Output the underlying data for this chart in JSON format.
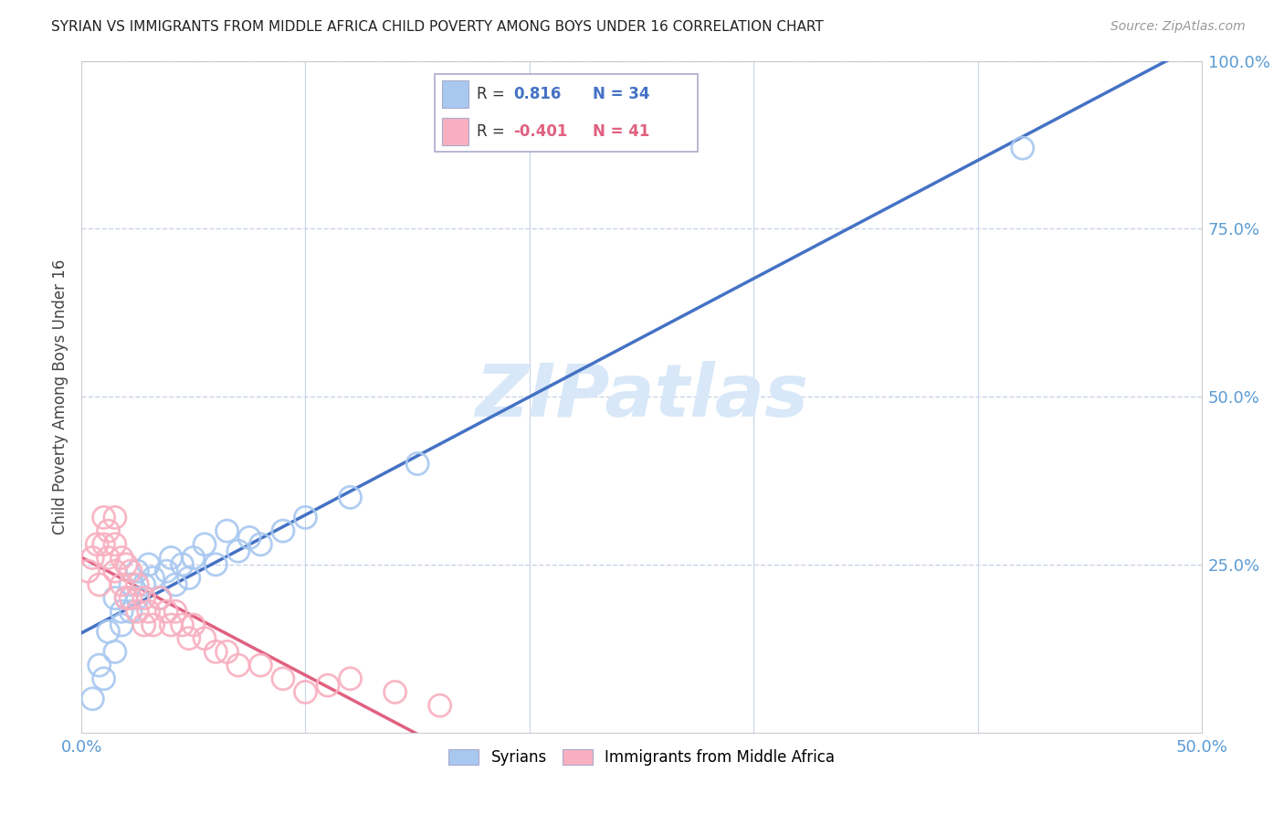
{
  "title": "SYRIAN VS IMMIGRANTS FROM MIDDLE AFRICA CHILD POVERTY AMONG BOYS UNDER 16 CORRELATION CHART",
  "source": "Source: ZipAtlas.com",
  "ylabel": "Child Poverty Among Boys Under 16",
  "xlim": [
    0.0,
    0.5
  ],
  "ylim": [
    0.0,
    1.0
  ],
  "blue_R": 0.816,
  "blue_N": 34,
  "pink_R": -0.401,
  "pink_N": 41,
  "blue_color": "#A8C8F0",
  "pink_color": "#F8B0C0",
  "blue_line_color": "#4472C4",
  "pink_line_color": "#E06080",
  "watermark_color": "#D8E8F8",
  "grid_color": "#C8D4E8",
  "blue_x": [
    0.005,
    0.008,
    0.01,
    0.012,
    0.015,
    0.015,
    0.018,
    0.018,
    0.02,
    0.022,
    0.022,
    0.025,
    0.025,
    0.028,
    0.03,
    0.032,
    0.035,
    0.038,
    0.04,
    0.042,
    0.045,
    0.048,
    0.05,
    0.055,
    0.06,
    0.065,
    0.07,
    0.075,
    0.08,
    0.09,
    0.1,
    0.12,
    0.15,
    0.42
  ],
  "blue_y": [
    0.05,
    0.1,
    0.08,
    0.15,
    0.12,
    0.2,
    0.18,
    0.16,
    0.2,
    0.18,
    0.22,
    0.2,
    0.24,
    0.22,
    0.25,
    0.23,
    0.2,
    0.24,
    0.26,
    0.22,
    0.25,
    0.23,
    0.26,
    0.28,
    0.25,
    0.3,
    0.27,
    0.29,
    0.28,
    0.3,
    0.32,
    0.35,
    0.4,
    0.87
  ],
  "pink_x": [
    0.003,
    0.005,
    0.007,
    0.008,
    0.01,
    0.01,
    0.012,
    0.012,
    0.015,
    0.015,
    0.015,
    0.018,
    0.018,
    0.02,
    0.02,
    0.022,
    0.022,
    0.025,
    0.025,
    0.028,
    0.028,
    0.03,
    0.032,
    0.035,
    0.038,
    0.04,
    0.042,
    0.045,
    0.048,
    0.05,
    0.055,
    0.06,
    0.065,
    0.07,
    0.08,
    0.09,
    0.1,
    0.11,
    0.12,
    0.14,
    0.16
  ],
  "pink_y": [
    0.24,
    0.26,
    0.28,
    0.22,
    0.28,
    0.32,
    0.26,
    0.3,
    0.28,
    0.32,
    0.24,
    0.26,
    0.22,
    0.25,
    0.2,
    0.24,
    0.2,
    0.22,
    0.18,
    0.2,
    0.16,
    0.18,
    0.16,
    0.2,
    0.18,
    0.16,
    0.18,
    0.16,
    0.14,
    0.16,
    0.14,
    0.12,
    0.12,
    0.1,
    0.1,
    0.08,
    0.06,
    0.07,
    0.08,
    0.06,
    0.04
  ]
}
